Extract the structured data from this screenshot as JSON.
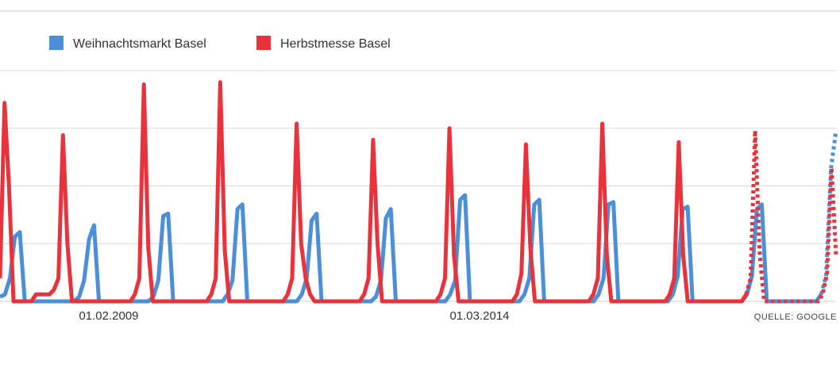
{
  "chart_data": {
    "type": "line",
    "title": "",
    "xlabel": "",
    "ylabel": "",
    "ylim": [
      0,
      100
    ],
    "grid": true,
    "legend_position": "top-left",
    "source": "QUELLE: GOOGLE",
    "x_tick_labels": [
      "01.02.2009",
      "01.03.2014"
    ],
    "series": [
      {
        "name": "Weihnachtsmarkt Basel",
        "color": "#4a8fd8",
        "values": [
          2,
          3,
          10,
          28,
          30,
          0,
          0,
          0,
          0,
          0,
          0,
          0,
          0,
          0,
          0,
          0,
          2,
          9,
          27,
          33,
          0,
          0,
          0,
          0,
          0,
          0,
          0,
          0,
          0,
          0,
          0,
          2,
          9,
          37,
          38,
          0,
          0,
          0,
          0,
          0,
          0,
          0,
          0,
          0,
          0,
          0,
          3,
          9,
          40,
          42,
          0,
          0,
          0,
          0,
          0,
          0,
          0,
          0,
          0,
          0,
          0,
          3,
          10,
          35,
          38,
          0,
          0,
          0,
          0,
          0,
          0,
          0,
          0,
          0,
          0,
          0,
          2,
          9,
          36,
          40,
          0,
          0,
          0,
          0,
          0,
          0,
          0,
          0,
          0,
          0,
          0,
          3,
          9,
          44,
          46,
          0,
          0,
          0,
          0,
          0,
          0,
          0,
          0,
          0,
          0,
          0,
          3,
          10,
          42,
          44,
          0,
          0,
          0,
          0,
          0,
          0,
          0,
          0,
          0,
          0,
          0,
          3,
          10,
          42,
          43,
          0,
          0,
          0,
          0,
          0,
          0,
          0,
          0,
          0,
          0,
          0,
          3,
          11,
          40,
          41,
          0,
          0,
          0,
          0,
          0,
          0,
          0,
          0,
          0,
          0,
          0,
          3,
          11,
          40,
          42,
          0,
          0,
          0,
          0,
          0,
          0,
          0,
          0,
          0,
          0,
          0,
          3,
          11,
          58,
          74
        ],
        "dotted_from": 166
      },
      {
        "name": "Herbstmesse Basel",
        "color": "#e8323c",
        "values": [
          10,
          86,
          50,
          0,
          0,
          0,
          0,
          0,
          3,
          3,
          3,
          3,
          5,
          10,
          72,
          25,
          0,
          0,
          0,
          0,
          0,
          0,
          0,
          0,
          0,
          0,
          0,
          0,
          0,
          0,
          3,
          10,
          94,
          23,
          0,
          0,
          0,
          0,
          0,
          0,
          0,
          0,
          0,
          0,
          0,
          0,
          0,
          3,
          10,
          95,
          22,
          0,
          0,
          0,
          0,
          0,
          0,
          0,
          0,
          0,
          0,
          0,
          0,
          0,
          3,
          10,
          77,
          25,
          10,
          3,
          0,
          0,
          0,
          0,
          0,
          0,
          0,
          0,
          0,
          0,
          0,
          3,
          10,
          70,
          25,
          0,
          0,
          0,
          0,
          0,
          0,
          0,
          0,
          0,
          0,
          0,
          0,
          0,
          3,
          10,
          75,
          20,
          0,
          0,
          0,
          0,
          0,
          0,
          0,
          0,
          0,
          0,
          0,
          0,
          0,
          3,
          12,
          68,
          23,
          0,
          0,
          0,
          0,
          0,
          0,
          0,
          0,
          0,
          0,
          0,
          0,
          0,
          3,
          10,
          77,
          20,
          0,
          0,
          0,
          0,
          0,
          0,
          0,
          0,
          0,
          0,
          0,
          0,
          0,
          3,
          10,
          69,
          20,
          0,
          0,
          0,
          0,
          0,
          0,
          0,
          0,
          0,
          0,
          0,
          0,
          0,
          3,
          10,
          74,
          21,
          0,
          0,
          0,
          0,
          0,
          0,
          0,
          0,
          0,
          0,
          0,
          0,
          0,
          3,
          12,
          58,
          20
        ],
        "dotted_from": 166
      }
    ]
  }
}
